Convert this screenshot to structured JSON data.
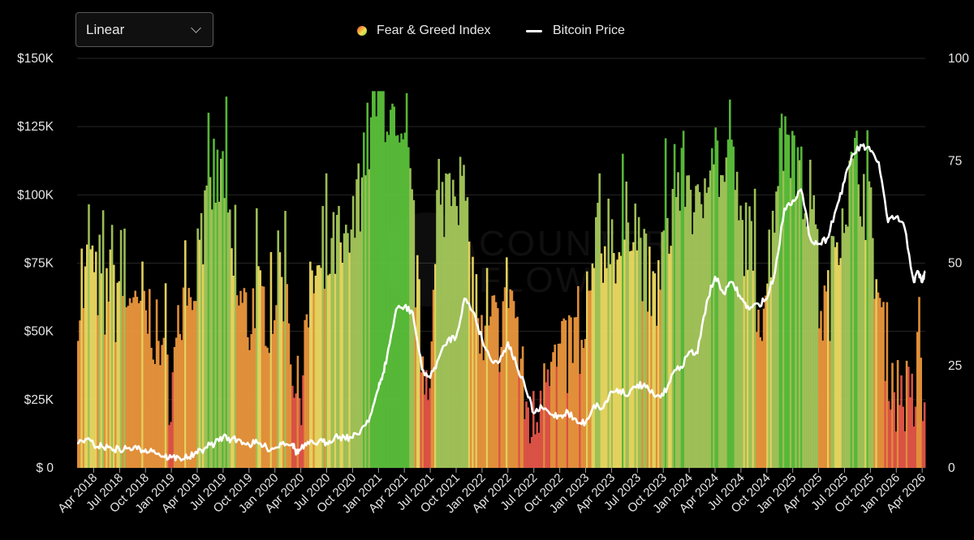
{
  "scale_select": {
    "value": "Linear"
  },
  "legend": {
    "fear_greed": "Fear & Greed Index",
    "bitcoin_price": "Bitcoin Price"
  },
  "colors": {
    "extreme_fear": "#e8574a",
    "fear": "#f0993e",
    "neutral": "#f2df64",
    "greed": "#a8cc5c",
    "extreme_greed": "#5cc43c",
    "price_line": "#ffffff",
    "grid": "#262626"
  },
  "chart_data": {
    "type": "bar+line",
    "title": "",
    "watermark": "COUNTER FLOW",
    "y_left": {
      "label": "Bitcoin Price",
      "range": [
        0,
        150000
      ],
      "ticks": [
        "$ 0",
        "$25K",
        "$50K",
        "$75K",
        "$100K",
        "$125K",
        "$150K"
      ]
    },
    "y_right": {
      "label": "Fear & Greed Index",
      "range": [
        0,
        100
      ],
      "ticks": [
        "0",
        "25",
        "50",
        "75",
        "100"
      ]
    },
    "x_range": [
      2018.09,
      2026.28
    ],
    "x_ticks": [
      "Apr 2018",
      "Jul 2018",
      "Oct 2018",
      "Jan 2019",
      "Apr 2019",
      "Jul 2019",
      "Oct 2019",
      "Jan 2020",
      "Apr 2020",
      "Jul 2020",
      "Oct 2020",
      "Jan 2021",
      "Apr 2021",
      "Jul 2021",
      "Oct 2021",
      "Jan 2022",
      "Apr 2022",
      "Jul 2022",
      "Oct 2022",
      "Jan 2023",
      "Apr 2023",
      "Jul 2023",
      "Oct 2023",
      "Jan 2024",
      "Apr 2024",
      "Jul 2024",
      "Oct 2024",
      "Jan 2025",
      "Apr 2025",
      "Jul 2025",
      "Oct 2025",
      "Jan 2026",
      "Apr 2026"
    ],
    "x_tick_values": [
      2018.25,
      2018.5,
      2018.75,
      2019.0,
      2019.25,
      2019.5,
      2019.75,
      2020.0,
      2020.25,
      2020.5,
      2020.75,
      2021.0,
      2021.25,
      2021.5,
      2021.75,
      2022.0,
      2022.25,
      2022.5,
      2022.75,
      2023.0,
      2023.25,
      2023.5,
      2023.75,
      2024.0,
      2024.25,
      2024.5,
      2024.75,
      2025.0,
      2025.25,
      2025.5,
      2025.75,
      2026.0,
      2026.25
    ],
    "series": [
      {
        "name": "Bitcoin Price",
        "type": "line",
        "x": [
          2018.09,
          2018.17,
          2018.25,
          2018.33,
          2018.42,
          2018.5,
          2018.58,
          2018.67,
          2018.75,
          2018.83,
          2018.92,
          2019.0,
          2019.08,
          2019.17,
          2019.25,
          2019.33,
          2019.42,
          2019.5,
          2019.58,
          2019.67,
          2019.75,
          2019.83,
          2019.92,
          2020.0,
          2020.08,
          2020.17,
          2020.21,
          2020.25,
          2020.33,
          2020.42,
          2020.5,
          2020.58,
          2020.67,
          2020.75,
          2020.83,
          2020.92,
          2021.0,
          2021.04,
          2021.08,
          2021.17,
          2021.25,
          2021.33,
          2021.42,
          2021.5,
          2021.58,
          2021.67,
          2021.75,
          2021.83,
          2021.92,
          2022.0,
          2022.08,
          2022.17,
          2022.25,
          2022.33,
          2022.42,
          2022.5,
          2022.58,
          2022.67,
          2022.75,
          2022.83,
          2022.92,
          2023.0,
          2023.08,
          2023.17,
          2023.25,
          2023.33,
          2023.42,
          2023.5,
          2023.58,
          2023.67,
          2023.75,
          2023.83,
          2023.92,
          2024.0,
          2024.08,
          2024.17,
          2024.25,
          2024.33,
          2024.42,
          2024.5,
          2024.58,
          2024.67,
          2024.75,
          2024.83,
          2024.92,
          2025.0,
          2025.08,
          2025.17,
          2025.25,
          2025.33,
          2025.42,
          2025.5,
          2025.58,
          2025.67,
          2025.75,
          2025.83,
          2025.92,
          2026.0,
          2026.08,
          2026.17,
          2026.21,
          2026.25,
          2026.28
        ],
        "y": [
          9000,
          10500,
          8500,
          7800,
          7200,
          6600,
          7200,
          6900,
          6700,
          6400,
          4200,
          3800,
          3600,
          3900,
          5300,
          7500,
          9000,
          11500,
          10500,
          10000,
          8500,
          9200,
          7300,
          7200,
          9500,
          8800,
          5500,
          6800,
          8800,
          9500,
          9200,
          11500,
          11300,
          11000,
          13800,
          19000,
          29000,
          34000,
          40000,
          58000,
          59000,
          57000,
          36000,
          33000,
          40000,
          47000,
          48000,
          62000,
          57000,
          47000,
          40000,
          39000,
          46000,
          38000,
          29000,
          20000,
          22000,
          19500,
          19000,
          20500,
          16500,
          16600,
          23000,
          22000,
          28000,
          28500,
          27000,
          30500,
          29500,
          26000,
          26500,
          34000,
          37000,
          42500,
          42000,
          61000,
          70000,
          64000,
          68000,
          62000,
          58000,
          60000,
          62000,
          72000,
          95000,
          98000,
          102000,
          84000,
          82000,
          84000,
          95000,
          105000,
          115000,
          118000,
          116000,
          112000,
          90000,
          92000,
          88000,
          68000,
          72000,
          68000,
          72000
        ]
      },
      {
        "name": "Fear & Greed Index",
        "type": "bar",
        "keyframes_x": [
          2018.09,
          2018.12,
          2018.15,
          2018.2,
          2018.25,
          2018.3,
          2018.35,
          2018.4,
          2018.45,
          2018.5,
          2018.55,
          2018.6,
          2018.65,
          2018.7,
          2018.75,
          2018.8,
          2018.85,
          2018.9,
          2018.95,
          2019.0,
          2019.05,
          2019.1,
          2019.15,
          2019.2,
          2019.25,
          2019.3,
          2019.35,
          2019.4,
          2019.45,
          2019.5,
          2019.55,
          2019.6,
          2019.65,
          2019.7,
          2019.75,
          2019.8,
          2019.85,
          2019.9,
          2019.95,
          2020.0,
          2020.05,
          2020.1,
          2020.15,
          2020.2,
          2020.25,
          2020.3,
          2020.35,
          2020.4,
          2020.45,
          2020.5,
          2020.55,
          2020.6,
          2020.65,
          2020.7,
          2020.75,
          2020.8,
          2020.85,
          2020.9,
          2020.95,
          2021.0,
          2021.05,
          2021.1,
          2021.15,
          2021.2,
          2021.25,
          2021.3,
          2021.35,
          2021.4,
          2021.45,
          2021.5,
          2021.55,
          2021.6,
          2021.65,
          2021.7,
          2021.75,
          2021.8,
          2021.85,
          2021.9,
          2021.95,
          2022.0,
          2022.05,
          2022.1,
          2022.15,
          2022.2,
          2022.25,
          2022.3,
          2022.35,
          2022.4,
          2022.45,
          2022.5,
          2022.55,
          2022.6,
          2022.65,
          2022.7,
          2022.75,
          2022.8,
          2022.85,
          2022.9,
          2022.95,
          2023.0,
          2023.05,
          2023.1,
          2023.15,
          2023.2,
          2023.25,
          2023.3,
          2023.35,
          2023.4,
          2023.45,
          2023.5,
          2023.55,
          2023.6,
          2023.65,
          2023.7,
          2023.75,
          2023.8,
          2023.85,
          2023.9,
          2023.95,
          2024.0,
          2024.05,
          2024.1,
          2024.15,
          2024.2,
          2024.25,
          2024.3,
          2024.35,
          2024.4,
          2024.45,
          2024.5,
          2024.55,
          2024.6,
          2024.65,
          2024.7,
          2024.75,
          2024.8,
          2024.85,
          2024.9,
          2024.95,
          2025.0,
          2025.05,
          2025.1,
          2025.15,
          2025.2,
          2025.25,
          2025.3,
          2025.35,
          2025.4,
          2025.45,
          2025.5,
          2025.55,
          2025.6,
          2025.65,
          2025.7,
          2025.75,
          2025.8,
          2025.85,
          2025.9,
          2025.95,
          2026.0,
          2026.05,
          2026.1,
          2026.15,
          2026.2,
          2026.25,
          2026.28
        ],
        "keyframes_y": [
          28,
          50,
          40,
          60,
          42,
          48,
          35,
          55,
          40,
          50,
          38,
          46,
          32,
          42,
          36,
          38,
          30,
          24,
          22,
          20,
          30,
          42,
          35,
          45,
          55,
          58,
          62,
          72,
          68,
          74,
          55,
          45,
          40,
          38,
          35,
          44,
          38,
          40,
          36,
          45,
          50,
          40,
          30,
          15,
          22,
          32,
          45,
          48,
          42,
          50,
          52,
          56,
          48,
          54,
          58,
          65,
          78,
          80,
          88,
          92,
          90,
          86,
          78,
          72,
          74,
          68,
          48,
          30,
          24,
          30,
          50,
          62,
          70,
          74,
          72,
          65,
          55,
          46,
          38,
          26,
          30,
          35,
          32,
          40,
          46,
          40,
          28,
          16,
          12,
          10,
          18,
          30,
          28,
          24,
          28,
          25,
          32,
          30,
          26,
          28,
          46,
          55,
          50,
          60,
          58,
          52,
          54,
          62,
          64,
          56,
          50,
          44,
          40,
          46,
          56,
          60,
          66,
          70,
          72,
          70,
          62,
          58,
          74,
          82,
          78,
          70,
          68,
          72,
          64,
          56,
          60,
          48,
          42,
          40,
          48,
          62,
          74,
          80,
          84,
          78,
          72,
          65,
          66,
          60,
          40,
          38,
          42,
          56,
          62,
          66,
          70,
          74,
          70,
          66,
          58,
          46,
          34,
          30,
          22,
          18,
          20,
          16,
          14,
          22,
          16,
          14
        ]
      }
    ]
  }
}
